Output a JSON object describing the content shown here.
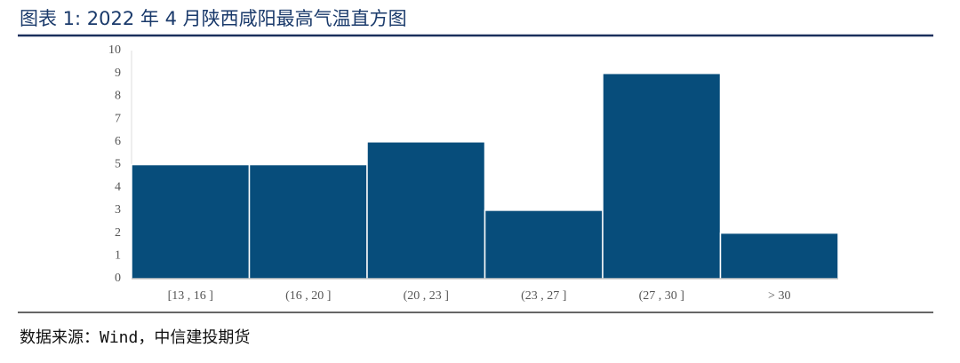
{
  "chart_data": {
    "type": "bar",
    "title": "图表 1: 2022 年 4 月陕西咸阳最高气温直方图",
    "source": "数据来源：Wind，中信建投期货",
    "categories": [
      "[13 , 16 ]",
      "(16 , 20 ]",
      "(20 , 23 ]",
      "(23 , 27 ]",
      "(27 , 30 ]",
      "> 30"
    ],
    "values": [
      5,
      5,
      6,
      3,
      9,
      2
    ],
    "color": "#074d7b",
    "ylim": [
      0,
      10
    ],
    "yticks": [
      0,
      1,
      2,
      3,
      4,
      5,
      6,
      7,
      8,
      9,
      10
    ]
  }
}
